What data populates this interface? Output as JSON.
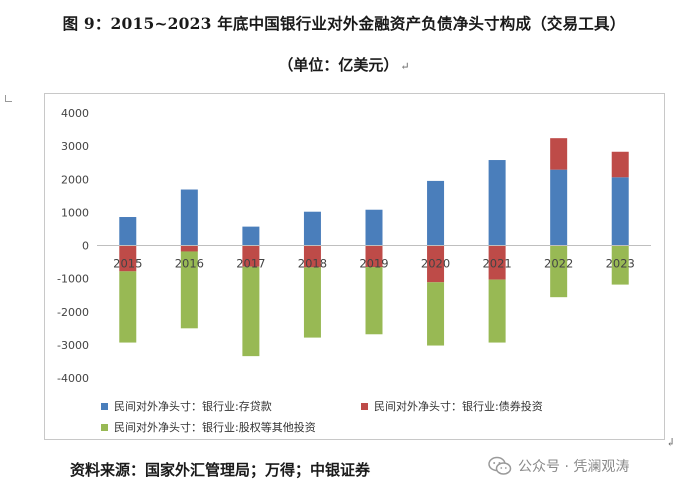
{
  "title": "图 9：2015~2023 年底中国银行业对外金融资产负债净头寸构成（交易工具）",
  "subtitle": "（单位：亿美元）",
  "paragraph_mark": "↵",
  "source": "资料来源：国家外汇管理局；万得；中银证券",
  "watermark": {
    "text": "公众号 · 凭澜观涛",
    "icon": "wechat-icon"
  },
  "colors": {
    "blue": "#4a7ebb",
    "red": "#be4b48",
    "green": "#98b954"
  },
  "chart_data": {
    "type": "bar",
    "stacked": true,
    "categories": [
      "2015",
      "2016",
      "2017",
      "2018",
      "2019",
      "2020",
      "2021",
      "2022",
      "2023"
    ],
    "yticks": [
      4000,
      3000,
      2000,
      1000,
      0,
      -1000,
      -2000,
      -3000,
      -4000
    ],
    "ylim": [
      -4000,
      4000
    ],
    "grid": false,
    "legend_position": "bottom",
    "series": [
      {
        "name": "民间对外净头寸：银行业:存贷款",
        "color": "#4a7ebb",
        "values": [
          860,
          1690,
          570,
          1020,
          1080,
          1950,
          2580,
          2290,
          2060
        ]
      },
      {
        "name": "民间对外净头寸：银行业:债券投资",
        "color": "#be4b48",
        "values": [
          -780,
          -180,
          -640,
          -660,
          -650,
          -1110,
          -1030,
          950,
          770
        ]
      },
      {
        "name": "民间对外净头寸：银行业:股权等其他投资",
        "color": "#98b954",
        "values": [
          -2150,
          -2320,
          -2700,
          -2120,
          -2030,
          -1910,
          -1900,
          -1560,
          -1180
        ]
      }
    ]
  }
}
